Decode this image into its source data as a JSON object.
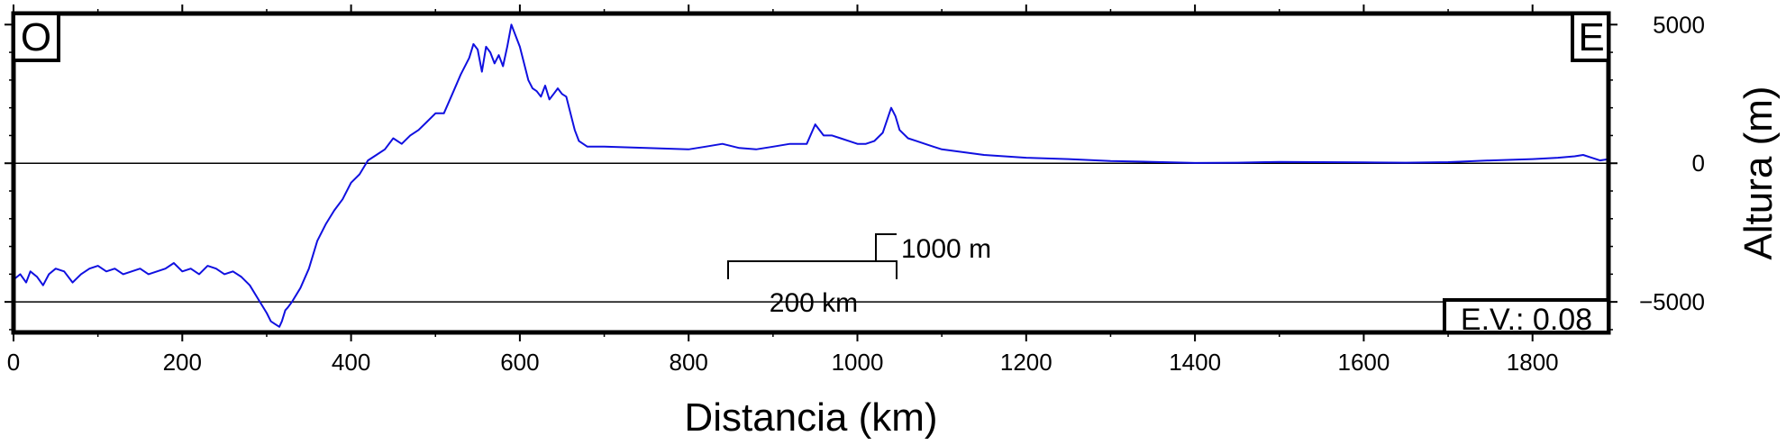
{
  "chart_data": {
    "type": "line",
    "title": "",
    "xlabel": "Distancia (km)",
    "ylabel": "Altura (m)",
    "xlim": [
      0,
      1890
    ],
    "ylim": [
      -6100,
      5400
    ],
    "x_ticks": [
      0,
      200,
      400,
      600,
      800,
      1000,
      1200,
      1400,
      1600,
      1800
    ],
    "x_tick_labels": [
      "0",
      "200",
      "400",
      "600",
      "800",
      "1000",
      "1200",
      "1400",
      "1600",
      "1800"
    ],
    "y_ticks": [
      5000,
      0,
      -5000
    ],
    "y_tick_labels": [
      "5000",
      "0",
      "−5000"
    ],
    "reference_lines": [
      0,
      -5000
    ],
    "corner_labels": {
      "west": "O",
      "east": "E"
    },
    "scale_bar": {
      "horizontal_label": "200 km",
      "horizontal_length_km": 200,
      "vertical_label": "1000 m",
      "vertical_length_m": 1000
    },
    "vertical_exaggeration_label": "E.V.: 0.08",
    "series": [
      {
        "color": "#1010e0",
        "x": [
          0,
          8,
          15,
          20,
          28,
          35,
          42,
          50,
          60,
          70,
          80,
          90,
          100,
          110,
          120,
          130,
          140,
          150,
          160,
          170,
          180,
          190,
          200,
          210,
          220,
          230,
          240,
          250,
          260,
          270,
          280,
          290,
          300,
          305,
          310,
          315,
          318,
          322,
          325,
          330,
          340,
          350,
          360,
          370,
          380,
          390,
          400,
          410,
          420,
          430,
          440,
          450,
          460,
          470,
          480,
          490,
          500,
          510,
          520,
          530,
          540,
          545,
          550,
          555,
          560,
          565,
          570,
          575,
          580,
          585,
          590,
          595,
          600,
          605,
          610,
          615,
          620,
          625,
          630,
          635,
          640,
          645,
          650,
          655,
          660,
          665,
          670,
          680,
          700,
          750,
          800,
          820,
          840,
          860,
          880,
          900,
          920,
          940,
          950,
          960,
          970,
          980,
          990,
          1000,
          1010,
          1020,
          1030,
          1040,
          1045,
          1050,
          1060,
          1070,
          1080,
          1090,
          1100,
          1150,
          1200,
          1250,
          1300,
          1350,
          1400,
          1450,
          1500,
          1550,
          1600,
          1650,
          1700,
          1750,
          1800,
          1830,
          1850,
          1860,
          1870,
          1880,
          1890
        ],
        "y": [
          -4200,
          -4000,
          -4300,
          -3900,
          -4100,
          -4400,
          -4000,
          -3800,
          -3900,
          -4300,
          -4000,
          -3800,
          -3700,
          -3900,
          -3800,
          -4000,
          -3900,
          -3800,
          -4000,
          -3900,
          -3800,
          -3600,
          -3900,
          -3800,
          -4000,
          -3700,
          -3800,
          -4000,
          -3900,
          -4100,
          -4400,
          -4900,
          -5400,
          -5700,
          -5800,
          -5900,
          -5700,
          -5300,
          -5200,
          -5000,
          -4500,
          -3800,
          -2800,
          -2200,
          -1700,
          -1300,
          -700,
          -400,
          100,
          300,
          500,
          900,
          700,
          1000,
          1200,
          1500,
          1800,
          1800,
          2500,
          3200,
          3800,
          4300,
          4100,
          3300,
          4200,
          4000,
          3600,
          3900,
          3500,
          4200,
          5000,
          4600,
          4200,
          3600,
          3000,
          2700,
          2600,
          2400,
          2800,
          2300,
          2500,
          2700,
          2500,
          2400,
          1800,
          1200,
          800,
          600,
          600,
          550,
          500,
          600,
          700,
          550,
          500,
          600,
          700,
          700,
          1400,
          1000,
          1000,
          900,
          800,
          700,
          700,
          800,
          1100,
          2000,
          1700,
          1200,
          900,
          800,
          700,
          600,
          500,
          300,
          200,
          150,
          80,
          50,
          10,
          20,
          50,
          40,
          30,
          20,
          40,
          100,
          150,
          200,
          250,
          300,
          200,
          100,
          150
        ]
      }
    ]
  }
}
